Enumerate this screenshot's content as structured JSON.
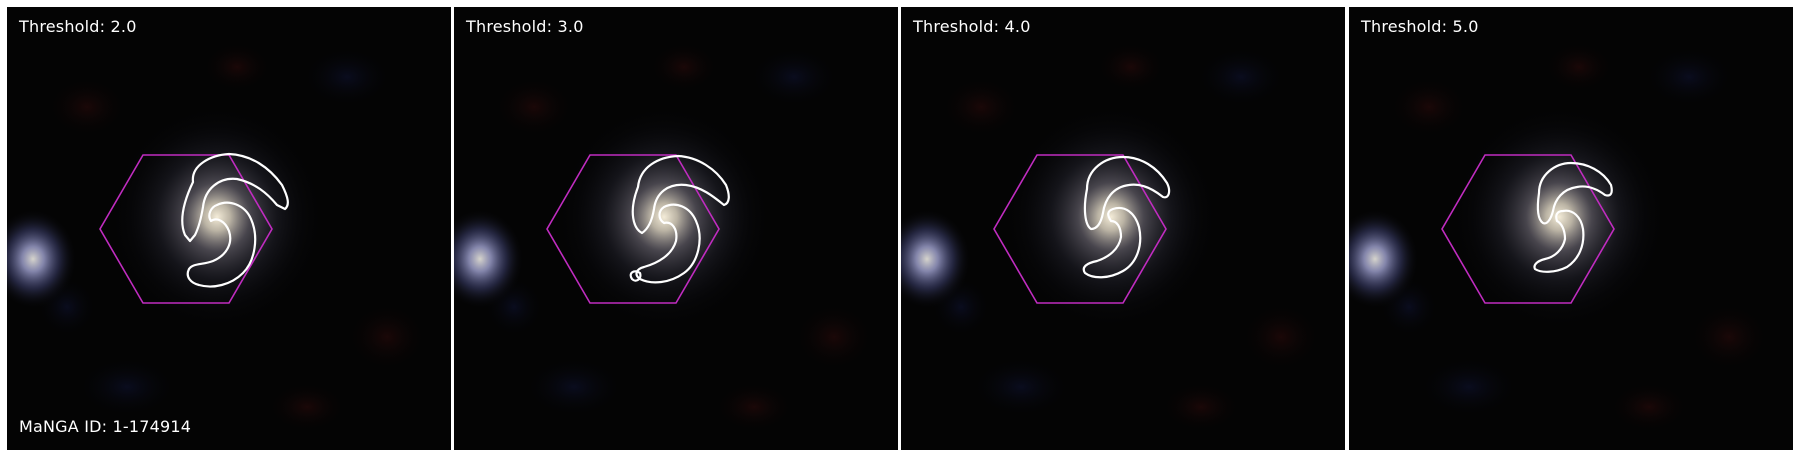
{
  "figure": {
    "panels": [
      {
        "threshold_label": "Threshold: 2.0"
      },
      {
        "threshold_label": "Threshold: 3.0"
      },
      {
        "threshold_label": "Threshold: 4.0"
      },
      {
        "threshold_label": "Threshold: 5.0"
      }
    ],
    "manga_id_label": "MaNGA ID: 1-174914",
    "colors": {
      "background": "#040404",
      "hexagon": "#c02cc0",
      "contour": "#ffffff",
      "galaxy_core": "#f3ead8",
      "neighbor_galaxy": "#8c90c8"
    }
  }
}
